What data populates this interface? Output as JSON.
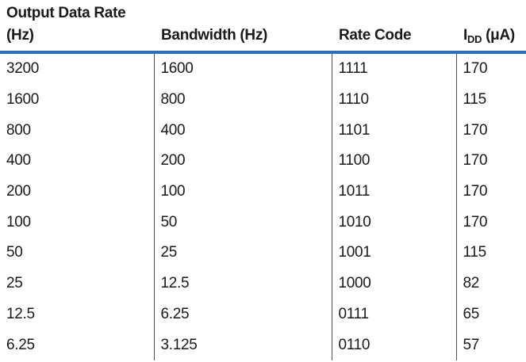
{
  "table": {
    "headers": {
      "col1_line1": "Output Data Rate",
      "col1_line2": "(Hz)",
      "col2": "Bandwidth (Hz)",
      "col3": "Rate Code",
      "col4_main": "I",
      "col4_sub": "DD",
      "col4_unit": " (μA)"
    },
    "rows": [
      [
        "3200",
        "1600",
        "1111",
        "170"
      ],
      [
        "1600",
        "800",
        "1110",
        "115"
      ],
      [
        "800",
        "400",
        "1101",
        "170"
      ],
      [
        "400",
        "200",
        "1100",
        "170"
      ],
      [
        "200",
        "100",
        "1011",
        "170"
      ],
      [
        "100",
        "50",
        "1010",
        "170"
      ],
      [
        "50",
        "25",
        "1001",
        "115"
      ],
      [
        "25",
        "12.5",
        "1000",
        "82"
      ],
      [
        "12.5",
        "6.25",
        "0111",
        "65"
      ],
      [
        "6.25",
        "3.125",
        "0110",
        "57"
      ]
    ]
  },
  "colors": {
    "header_rule": "#2f6eb5",
    "text": "#1a1a1a",
    "divider": "#555555"
  }
}
